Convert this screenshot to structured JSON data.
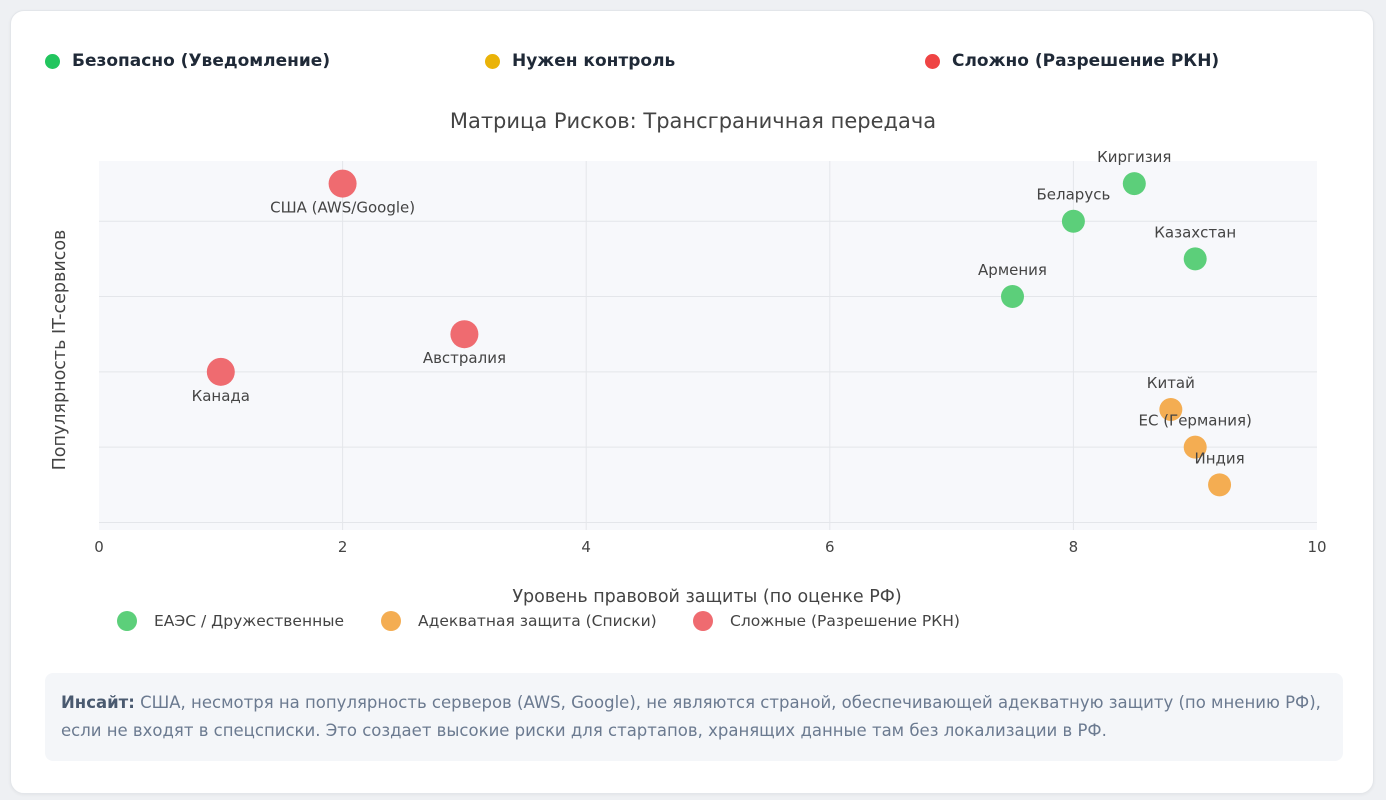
{
  "top_legend": [
    {
      "label": "Безопасно (Уведомление)",
      "color": "#22c55e"
    },
    {
      "label": "Нужен контроль",
      "color": "#eab308"
    },
    {
      "label": "Сложно (Разрешение РКН)",
      "color": "#ef4444"
    }
  ],
  "chart_data": {
    "type": "scatter",
    "title": "Матрица Рисков: Трансграничная передача",
    "xlabel": "Уровень правовой защиты (по оценке РФ)",
    "ylabel": "Популярность IT-сервисов",
    "xlim": [
      0,
      10
    ],
    "ylim": [
      0.9,
      5.8
    ],
    "x_ticks": [
      0,
      2,
      4,
      6,
      8,
      10
    ],
    "y_gridlines": [
      1,
      2,
      3,
      4,
      5
    ],
    "show_y_tick_labels": false,
    "grid": true,
    "legend_position": "bottom-left",
    "series": [
      {
        "name": "ЕАЭС / Дружественные",
        "color": "#5ccf7a",
        "points": [
          {
            "label": "Киргизия",
            "x": 8.5,
            "y": 5.5
          },
          {
            "label": "Беларусь",
            "x": 8.0,
            "y": 5.0
          },
          {
            "label": "Казахстан",
            "x": 9.0,
            "y": 4.5
          },
          {
            "label": "Армения",
            "x": 7.5,
            "y": 4.0
          }
        ]
      },
      {
        "name": "Адекватная защита (Списки)",
        "color": "#f4ad52",
        "points": [
          {
            "label": "Китай",
            "x": 8.8,
            "y": 2.5
          },
          {
            "label": "ЕС (Германия)",
            "x": 9.0,
            "y": 2.0
          },
          {
            "label": "Индия",
            "x": 9.2,
            "y": 1.5
          }
        ]
      },
      {
        "name": "Сложные (Разрешение РКН)",
        "color": "#ef6b70",
        "points": [
          {
            "label": "США (AWS/Google)",
            "x": 2.0,
            "y": 5.5
          },
          {
            "label": "Австралия",
            "x": 3.0,
            "y": 3.5
          },
          {
            "label": "Канада",
            "x": 1.0,
            "y": 3.0
          }
        ]
      }
    ]
  },
  "insight": {
    "prefix": "Инсайт:",
    "text": "США, несмотря на популярность серверов (AWS, Google), не являются страной, обеспечивающей адекватную защиту (по мнению РФ), если не входят в спецсписки. Это создает высокие риски для стартапов, хранящих данные там без локализации в РФ."
  }
}
